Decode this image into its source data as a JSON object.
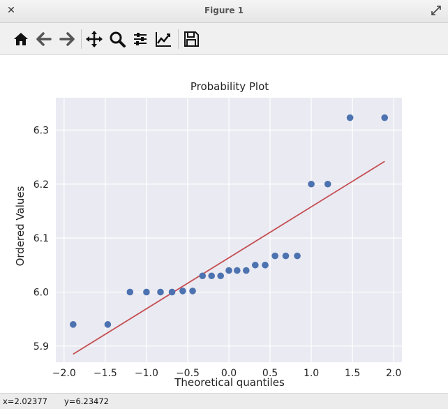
{
  "window": {
    "title": "Figure 1",
    "close_icon": "close-icon",
    "maximize_icon": "maximize-icon"
  },
  "toolbar": {
    "items": [
      {
        "name": "home-button",
        "icon": "home-icon"
      },
      {
        "name": "back-button",
        "icon": "arrow-left-icon"
      },
      {
        "name": "forward-button",
        "icon": "arrow-right-icon"
      },
      {
        "name": "pan-button",
        "icon": "move-icon"
      },
      {
        "name": "zoom-button",
        "icon": "magnifier-icon"
      },
      {
        "name": "configure-subplots-button",
        "icon": "sliders-icon"
      },
      {
        "name": "edit-axes-button",
        "icon": "line-chart-icon"
      },
      {
        "name": "save-button",
        "icon": "floppy-disk-icon"
      }
    ]
  },
  "status": {
    "x_readout": "x=2.02377",
    "y_readout": "y=6.23472"
  },
  "chart_data": {
    "type": "scatter",
    "title": "Probability Plot",
    "xlabel": "Theoretical quantiles",
    "ylabel": "Ordered Values",
    "xlim": [
      -2.1,
      2.1
    ],
    "ylim": [
      5.87,
      6.36
    ],
    "xticks": [
      -2.0,
      -1.5,
      -1.0,
      -0.5,
      0.0,
      0.5,
      1.0,
      1.5,
      2.0
    ],
    "xtick_labels": [
      "−2.0",
      "−1.5",
      "−1.0",
      "−0.5",
      "0.0",
      "0.5",
      "1.0",
      "1.5",
      "2.0"
    ],
    "yticks": [
      5.9,
      6.0,
      6.1,
      6.2,
      6.3
    ],
    "ytick_labels": [
      "5.9",
      "6.0",
      "6.1",
      "6.2",
      "6.3"
    ],
    "grid": true,
    "background": "#eaeaf2",
    "point_color": "#4c72b0",
    "line_color": "#c44e52",
    "points": [
      {
        "x": -1.89,
        "y": 5.94
      },
      {
        "x": -1.47,
        "y": 5.94
      },
      {
        "x": -1.2,
        "y": 6.0
      },
      {
        "x": -1.0,
        "y": 6.0
      },
      {
        "x": -0.83,
        "y": 6.0
      },
      {
        "x": -0.69,
        "y": 6.0
      },
      {
        "x": -0.56,
        "y": 6.002
      },
      {
        "x": -0.44,
        "y": 6.002
      },
      {
        "x": -0.32,
        "y": 6.03
      },
      {
        "x": -0.21,
        "y": 6.03
      },
      {
        "x": -0.1,
        "y": 6.03
      },
      {
        "x": 0.0,
        "y": 6.04
      },
      {
        "x": 0.1,
        "y": 6.04
      },
      {
        "x": 0.21,
        "y": 6.04
      },
      {
        "x": 0.32,
        "y": 6.05
      },
      {
        "x": 0.44,
        "y": 6.05
      },
      {
        "x": 0.56,
        "y": 6.067
      },
      {
        "x": 0.69,
        "y": 6.067
      },
      {
        "x": 0.83,
        "y": 6.067
      },
      {
        "x": 1.0,
        "y": 6.2
      },
      {
        "x": 1.2,
        "y": 6.2
      },
      {
        "x": 1.47,
        "y": 6.323
      },
      {
        "x": 1.89,
        "y": 6.323
      }
    ],
    "fit_line": {
      "x": [
        -1.89,
        1.89
      ],
      "y": [
        5.885,
        6.242
      ]
    }
  }
}
